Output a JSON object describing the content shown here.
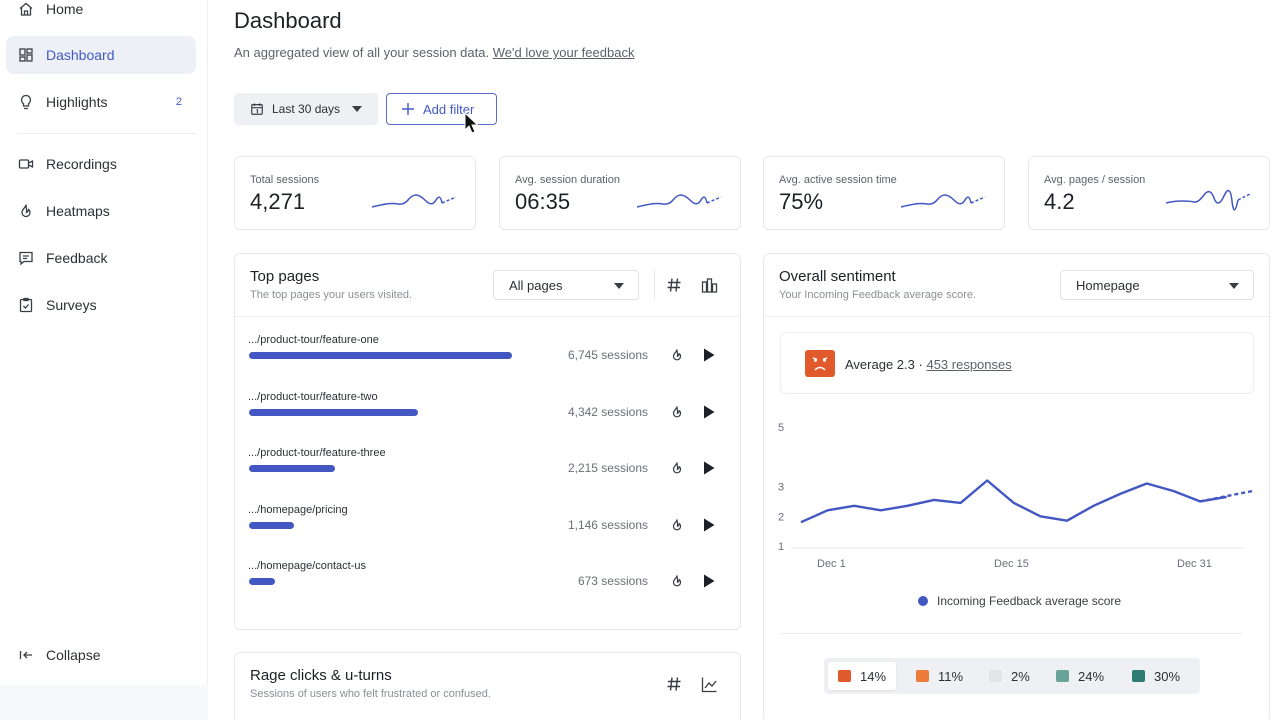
{
  "sidebar": {
    "items": [
      {
        "label": "Home",
        "icon": "home-icon"
      },
      {
        "label": "Dashboard",
        "icon": "dashboard-icon",
        "active": true
      },
      {
        "label": "Highlights",
        "icon": "lightbulb-icon",
        "badge": "2"
      },
      {
        "label": "Recordings",
        "icon": "video-icon"
      },
      {
        "label": "Heatmaps",
        "icon": "flame-icon"
      },
      {
        "label": "Feedback",
        "icon": "message-icon"
      },
      {
        "label": "Surveys",
        "icon": "clipboard-check-icon"
      }
    ],
    "collapse_label": "Collapse"
  },
  "header": {
    "title": "Dashboard",
    "subtitle": "An aggregated view of all your session data.",
    "feedback_link": "We'd love your feedback"
  },
  "toolbar": {
    "date_range": "Last 30 days",
    "add_filter": "Add filter"
  },
  "stats": [
    {
      "label": "Total sessions",
      "value": "4,271"
    },
    {
      "label": "Avg. session duration",
      "value": "06:35"
    },
    {
      "label": "Avg. active session time",
      "value": "75%"
    },
    {
      "label": "Avg. pages / session",
      "value": "4.2"
    }
  ],
  "top_pages": {
    "title": "Top pages",
    "subtitle": "The top pages your users visited.",
    "filter": "All pages",
    "rows": [
      {
        "url": ".../product-tour/feature-one",
        "sessions": 6745,
        "count": "6,745 sessions"
      },
      {
        "url": ".../product-tour/feature-two",
        "sessions": 4342,
        "count": "4,342 sessions"
      },
      {
        "url": ".../product-tour/feature-three",
        "sessions": 2215,
        "count": "2,215 sessions"
      },
      {
        "url": ".../homepage/pricing",
        "sessions": 1146,
        "count": "1,146 sessions"
      },
      {
        "url": ".../homepage/contact-us",
        "sessions": 673,
        "count": "673 sessions"
      }
    ]
  },
  "sentiment": {
    "title": "Overall sentiment",
    "subtitle": "Your Incoming Feedback average score.",
    "filter": "Homepage",
    "average_label": "Average 2.3",
    "separator": "·",
    "responses": "453 responses",
    "legend": "Incoming Feedback average score",
    "distribution": [
      {
        "label": "14%",
        "color": "#e05a2b"
      },
      {
        "label": "11%",
        "color": "#ec7a3a"
      },
      {
        "label": "2%",
        "color": "#e3e5e8"
      },
      {
        "label": "24%",
        "color": "#6aa39a"
      },
      {
        "label": "30%",
        "color": "#2f7c73"
      }
    ]
  },
  "chart_data": {
    "type": "line",
    "title": "",
    "xlabel": "",
    "ylabel": "",
    "x_ticks": [
      "Dec 1",
      "Dec 15",
      "Dec 31"
    ],
    "y_ticks": [
      "1",
      "2",
      "3",
      "5"
    ],
    "ylim": [
      1,
      5
    ],
    "series": [
      {
        "name": "Incoming Feedback average score",
        "x": [
          "Nov 28",
          "Nov 30",
          "Dec 2",
          "Dec 4",
          "Dec 6",
          "Dec 8",
          "Dec 10",
          "Dec 12",
          "Dec 14",
          "Dec 16",
          "Dec 18",
          "Dec 20",
          "Dec 22",
          "Dec 24",
          "Dec 26",
          "Dec 28",
          "Dec 30"
        ],
        "values": [
          1.8,
          2.2,
          2.35,
          2.2,
          2.35,
          2.55,
          2.45,
          3.2,
          2.45,
          2.0,
          1.85,
          2.35,
          2.75,
          3.1,
          2.85,
          2.5,
          2.65
        ],
        "projected": [
          2.5,
          2.85
        ]
      }
    ]
  },
  "rage_clicks": {
    "title": "Rage clicks & u-turns",
    "subtitle": "Sessions of users who felt frustrated or confused."
  },
  "colors": {
    "accent": "#4357c2",
    "angry": "#e05a2b"
  }
}
